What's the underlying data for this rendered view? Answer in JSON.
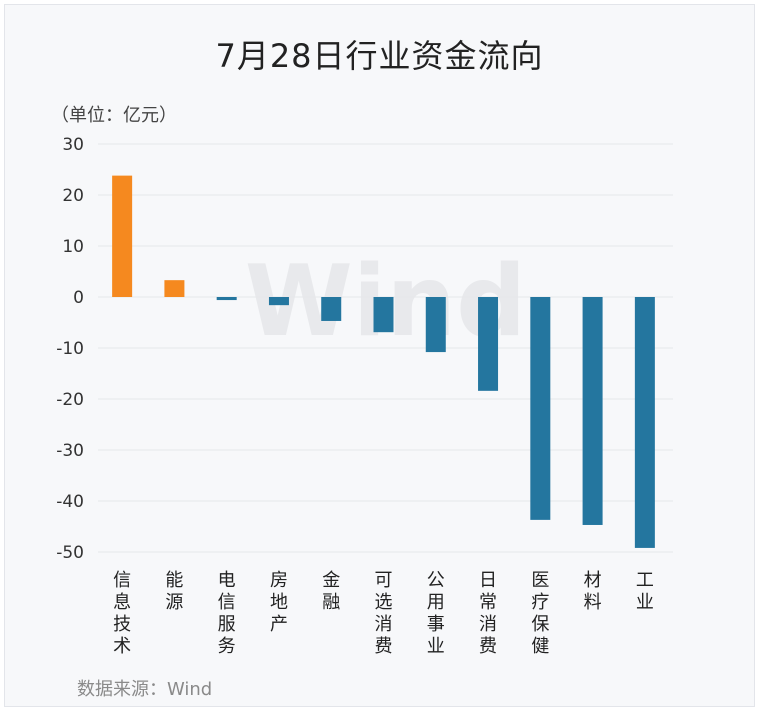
{
  "chart_data": {
    "type": "bar",
    "title": "7月28日行业资金流向",
    "unit_label": "（单位：亿元）",
    "source": "数据来源：Wind",
    "watermark": "Wind",
    "categories": [
      "信息技术",
      "能源",
      "电信服务",
      "房地产",
      "金融",
      "可选消费",
      "公用事业",
      "日常消费",
      "医疗保健",
      "材料",
      "工业"
    ],
    "values": [
      23.8,
      3.3,
      -0.6,
      -1.6,
      -4.7,
      -6.9,
      -10.8,
      -18.4,
      -43.7,
      -44.7,
      -49.2
    ],
    "ylim": [
      -50,
      30
    ],
    "yticks": [
      30,
      20,
      10,
      0,
      -10,
      -20,
      -30,
      -40,
      -50
    ],
    "grid": true,
    "colors": {
      "positive": "#f5891f",
      "negative": "#24769f",
      "grid": "#e6e7ea"
    }
  }
}
